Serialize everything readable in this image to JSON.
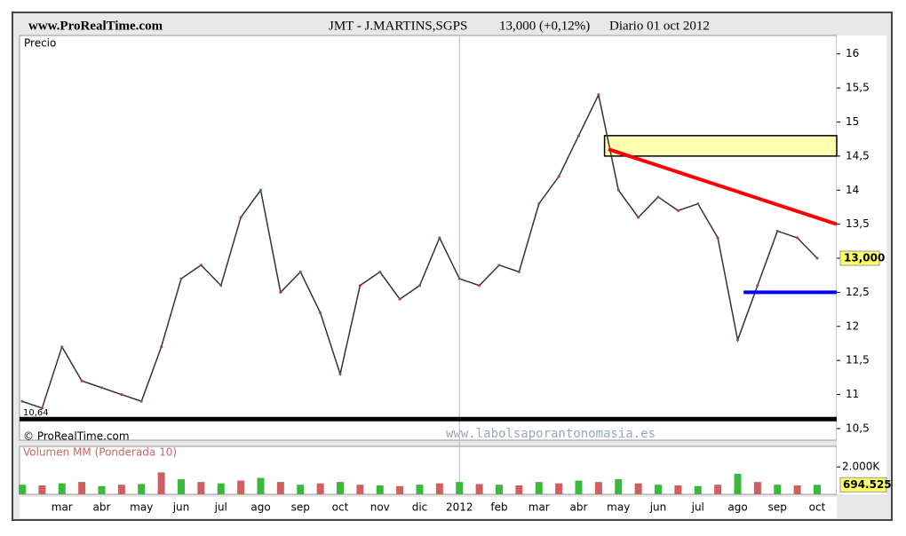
{
  "chart_data": {
    "type": "line",
    "site": "www.ProRealTime.com",
    "title": "JMT - J.MARTINS,SGPS",
    "quote": "13,000 (+0,12%)",
    "period": "Diario  01 oct 2012",
    "y_label": "Precio",
    "copyright": "© ProRealTime.com",
    "watermark": "www.labolsaporantonomasia.es",
    "x_labels": [
      "mar",
      "abr",
      "may",
      "jun",
      "jul",
      "ago",
      "sep",
      "oct",
      "nov",
      "dic",
      "2012",
      "feb",
      "mar",
      "abr",
      "may",
      "jun",
      "jul",
      "ago",
      "sep",
      "oct"
    ],
    "series": [
      {
        "name": "JMT",
        "color": "#333333",
        "values": [
          10.9,
          10.8,
          11.7,
          11.2,
          11.1,
          11.0,
          10.9,
          11.7,
          12.7,
          12.9,
          12.6,
          13.6,
          14.0,
          12.5,
          12.8,
          12.2,
          11.3,
          12.6,
          12.8,
          12.4,
          12.6,
          13.3,
          12.7,
          12.6,
          12.9,
          12.8,
          13.8,
          14.2,
          14.8,
          15.4,
          14.0,
          13.6,
          13.9,
          13.7,
          13.8,
          13.3,
          11.8,
          12.6,
          13.4,
          13.3,
          13.0
        ]
      }
    ],
    "last_price": {
      "value": 13.0,
      "label": "13,000"
    },
    "ylim": [
      10.33,
      16.27
    ],
    "yticks": [
      {
        "value": 10.5,
        "label": "10,5"
      },
      11,
      {
        "value": 11.5,
        "label": "11,5"
      },
      12,
      {
        "value": 12.5,
        "label": "12,5"
      },
      13,
      {
        "value": 13.5,
        "label": "13,5"
      },
      14,
      {
        "value": 14.5,
        "label": "14,5"
      },
      15,
      {
        "value": 15.5,
        "label": "15,5"
      },
      16
    ],
    "support": {
      "value": 10.64,
      "label": "10,64",
      "color": "#000000"
    },
    "trendline": {
      "from": 14.6,
      "to": 13.5,
      "color": "#ff0000"
    },
    "zone": {
      "low": 14.5,
      "high": 14.8,
      "color": "#ffffb0"
    },
    "floor": {
      "value": 12.5,
      "color": "#0000ff"
    },
    "volume": {
      "title": "Volumen MM (Ponderada 10)",
      "color": "#3cb83c",
      "values": [
        700000,
        650000,
        800000,
        900000,
        600000,
        700000,
        750000,
        1600000,
        1100000,
        900000,
        800000,
        1000000,
        1200000,
        900000,
        700000,
        800000,
        900000,
        700000,
        650000,
        600000,
        700000,
        800000,
        900000,
        750000,
        700000,
        650000,
        900000,
        800000,
        1000000,
        900000,
        1100000,
        800000,
        700000,
        650000,
        600000,
        700000,
        1500000,
        900000,
        700000,
        650000,
        694525
      ],
      "last": {
        "value": 694525,
        "label": "694.525"
      },
      "ylim": [
        0,
        3500000
      ],
      "yticks": [
        {
          "value": 2000000,
          "label": "2.000K"
        }
      ]
    }
  }
}
